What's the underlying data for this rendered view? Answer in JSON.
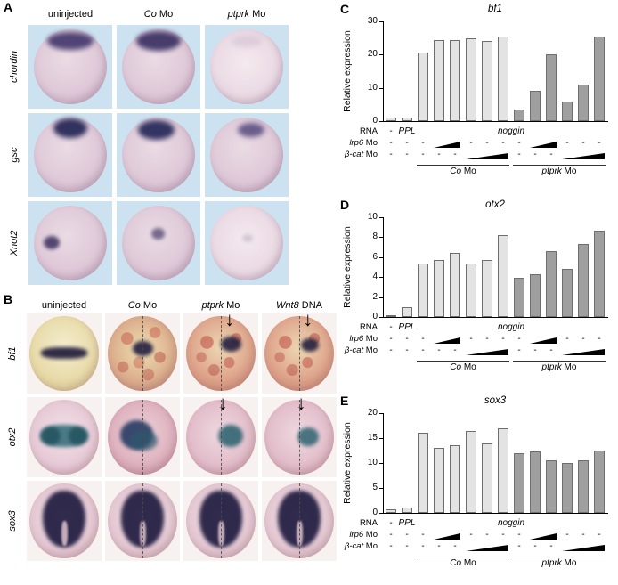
{
  "icons": {
    "down_arrow": "↓"
  },
  "panel_a": {
    "label": "A",
    "col_headers": [
      {
        "italic": "",
        "plain": "uninjected"
      },
      {
        "italic": "Co",
        "plain": " Mo"
      },
      {
        "italic": "ptprk",
        "plain": " Mo"
      }
    ],
    "row_labels": [
      "chordin",
      "gsc",
      "Xnot2"
    ]
  },
  "panel_b": {
    "label": "B",
    "col_headers": [
      {
        "italic": "",
        "plain": "uninjected"
      },
      {
        "italic": "Co",
        "plain": " Mo"
      },
      {
        "italic": "ptprk",
        "plain": " Mo"
      },
      {
        "italic": "Wnt8",
        "plain": " DNA"
      }
    ],
    "row_labels": [
      "bf1",
      "otx2",
      "sox3"
    ]
  },
  "chart_common": {
    "ylabel": "Relative expression",
    "n_slots": 14,
    "colors": {
      "light": "#e3e3e3",
      "dark": "#9f9f9f"
    },
    "rows": [
      {
        "label_italic": "",
        "label_plain": "RNA",
        "cells": [
          {
            "slot": 0,
            "text": "-"
          },
          {
            "slot": 1,
            "text": "PPL",
            "italic": true
          },
          {
            "from": 2,
            "to": 13,
            "text": "noggin",
            "italic": true
          }
        ]
      },
      {
        "label_italic": "lrp6",
        "label_plain": " Mo",
        "cells": [
          {
            "slot": 0,
            "text": "-"
          },
          {
            "slot": 1,
            "text": "-"
          },
          {
            "slot": 2,
            "text": "-"
          },
          {
            "from": 3,
            "to": 4,
            "wedge": true
          },
          {
            "slot": 5,
            "text": "-"
          },
          {
            "slot": 6,
            "text": "-"
          },
          {
            "slot": 7,
            "text": "-"
          },
          {
            "slot": 8,
            "text": "-"
          },
          {
            "from": 9,
            "to": 10,
            "wedge": true
          },
          {
            "slot": 11,
            "text": "-"
          },
          {
            "slot": 12,
            "text": "-"
          },
          {
            "slot": 13,
            "text": "-"
          }
        ]
      },
      {
        "label_italic": "β-cat",
        "label_plain": " Mo",
        "cells": [
          {
            "slot": 0,
            "text": "-"
          },
          {
            "slot": 1,
            "text": "-"
          },
          {
            "slot": 2,
            "text": "-"
          },
          {
            "slot": 3,
            "text": "-"
          },
          {
            "slot": 4,
            "text": "-"
          },
          {
            "from": 5,
            "to": 7,
            "wedge": true
          },
          {
            "slot": 8,
            "text": "-"
          },
          {
            "slot": 9,
            "text": "-"
          },
          {
            "slot": 10,
            "text": "-"
          },
          {
            "from": 11,
            "to": 13,
            "wedge": true
          }
        ]
      }
    ],
    "group_labels": [
      {
        "italic": "Co",
        "plain": " Mo",
        "from": 2,
        "to": 7
      },
      {
        "italic": "ptprk",
        "plain": " Mo",
        "from": 8,
        "to": 13
      }
    ]
  },
  "chart_data": [
    {
      "type": "bar",
      "panel": "C",
      "title": "bf1",
      "ylim": [
        0,
        30
      ],
      "yticks": [
        0,
        10,
        20,
        30
      ],
      "values": [
        1.0,
        1.2,
        20.5,
        24.5,
        24.5,
        25.0,
        24.0,
        25.5,
        3.5,
        9.0,
        20.0,
        6.0,
        11.0,
        25.5
      ]
    },
    {
      "type": "bar",
      "panel": "D",
      "title": "otx2",
      "ylim": [
        0,
        10
      ],
      "yticks": [
        0,
        2,
        4,
        6,
        8,
        10
      ],
      "values": [
        0.2,
        1.0,
        5.4,
        5.7,
        6.4,
        5.4,
        5.7,
        8.2,
        3.9,
        4.3,
        6.6,
        4.8,
        7.3,
        8.7
      ]
    },
    {
      "type": "bar",
      "panel": "E",
      "title": "sox3",
      "ylim": [
        0,
        20
      ],
      "yticks": [
        0,
        5,
        10,
        15,
        20
      ],
      "values": [
        0.8,
        1.0,
        16.0,
        13.0,
        13.5,
        16.5,
        14.0,
        17.0,
        12.0,
        12.3,
        10.5,
        10.0,
        10.5,
        12.5
      ]
    }
  ]
}
